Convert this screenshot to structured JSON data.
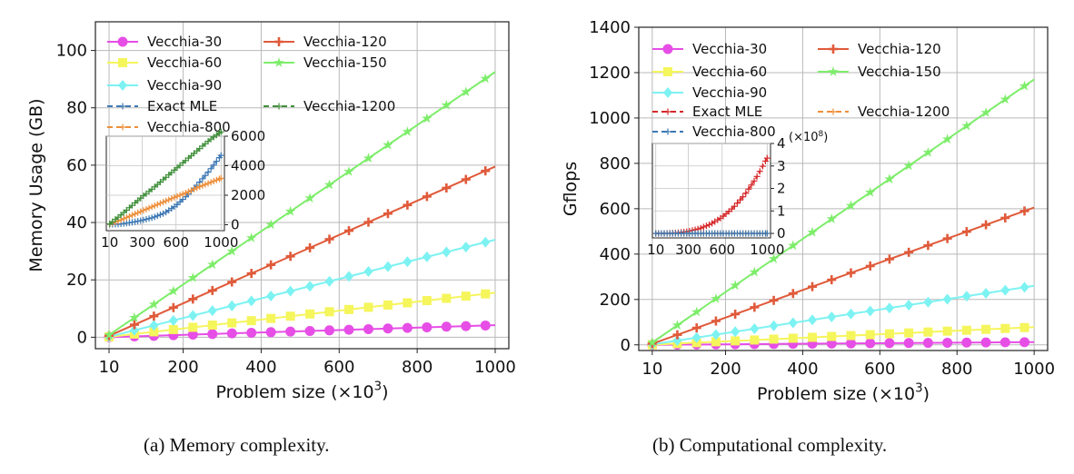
{
  "captions": {
    "a": "(a) Memory complexity.",
    "b": "(b) Computational complexity."
  },
  "chart_data": [
    {
      "type": "line",
      "title": "",
      "xlabel": "Problem size (×10^3)",
      "ylabel": "Memory Usage (GB)",
      "xlim": [
        -25,
        1035
      ],
      "ylim": [
        -4,
        110
      ],
      "xticks": [
        10,
        200,
        400,
        600,
        800,
        1000
      ],
      "yticks": [
        0,
        20,
        40,
        60,
        80,
        100
      ],
      "grid": true,
      "legend_columns": [
        [
          "Vecchia-30",
          "Vecchia-60",
          "Vecchia-90",
          "Exact MLE",
          "Vecchia-800"
        ],
        [
          "Vecchia-120",
          "Vecchia-150",
          "",
          "Vecchia-1200",
          ""
        ]
      ],
      "series": [
        {
          "name": "Vecchia-30",
          "color": "#e64ee6",
          "marker": "circle",
          "x": [
            10,
            1000
          ],
          "y": [
            0,
            4.2
          ]
        },
        {
          "name": "Vecchia-60",
          "color": "#f5f55c",
          "marker": "square",
          "x": [
            10,
            1000
          ],
          "y": [
            0.1,
            15.5
          ]
        },
        {
          "name": "Vecchia-90",
          "color": "#7df2f2",
          "marker": "diamond",
          "x": [
            10,
            1000
          ],
          "y": [
            0.2,
            34
          ]
        },
        {
          "name": "Vecchia-120",
          "color": "#e05a3a",
          "marker": "plus",
          "x": [
            10,
            1000
          ],
          "y": [
            0.5,
            59.5
          ]
        },
        {
          "name": "Vecchia-150",
          "color": "#7ded6a",
          "marker": "star",
          "x": [
            10,
            1000
          ],
          "y": [
            0.8,
            92.5
          ]
        },
        {
          "name": "Exact MLE",
          "color": "#3c78b4",
          "marker": "plus",
          "dashed": true,
          "inset_only": true
        },
        {
          "name": "Vecchia-800",
          "color": "#ee8f3a",
          "marker": "plus",
          "dashed": true,
          "inset_only": true
        },
        {
          "name": "Vecchia-1200",
          "color": "#3f8f3a",
          "marker": "plus",
          "dashed": true,
          "inset_only": true
        }
      ],
      "inset": {
        "xlim": [
          -20,
          1030
        ],
        "ylim": [
          -400,
          6000
        ],
        "xticks": [
          10,
          300,
          600,
          1000
        ],
        "yticks": [
          0,
          2000,
          4000,
          6000
        ],
        "yaxis_side": "right",
        "series": [
          {
            "name": "Exact MLE",
            "color": "#3c78b4",
            "x": [
              10,
              100,
              200,
              300,
              400,
              500,
              600,
              700,
              800,
              900,
              1000
            ],
            "y": [
              20,
              50,
              150,
              300,
              500,
              800,
              1300,
              2000,
              2800,
              3700,
              4700
            ]
          },
          {
            "name": "Vecchia-800",
            "color": "#ee8f3a",
            "x": [
              10,
              100,
              200,
              300,
              400,
              500,
              600,
              700,
              800,
              900,
              1000
            ],
            "y": [
              40,
              300,
              620,
              940,
              1260,
              1580,
              1900,
              2200,
              2550,
              2850,
              3150
            ]
          },
          {
            "name": "Vecchia-1200",
            "color": "#3f8f3a",
            "x": [
              10,
              100,
              200,
              300,
              400,
              500,
              600,
              700,
              800,
              900,
              1000
            ],
            "y": [
              60,
              600,
              1250,
              1900,
              2500,
              3150,
              3800,
              4450,
              5100,
              5750,
              6300
            ]
          }
        ]
      }
    },
    {
      "type": "line",
      "title": "",
      "xlabel": "Problem size (×10^3)",
      "ylabel": "Gflops",
      "xlim": [
        -25,
        1035
      ],
      "ylim": [
        -25,
        1400
      ],
      "xticks": [
        10,
        200,
        400,
        600,
        800,
        1000
      ],
      "yticks": [
        0,
        200,
        400,
        600,
        800,
        1000,
        1200,
        1400
      ],
      "grid": true,
      "legend_columns": [
        [
          "Vecchia-30",
          "Vecchia-60",
          "Vecchia-90",
          "Exact MLE",
          "Vecchia-800"
        ],
        [
          "Vecchia-120",
          "Vecchia-150",
          "",
          "Vecchia-1200",
          ""
        ]
      ],
      "series": [
        {
          "name": "Vecchia-30",
          "color": "#e64ee6",
          "marker": "circle",
          "x": [
            10,
            1000
          ],
          "y": [
            0,
            12
          ]
        },
        {
          "name": "Vecchia-60",
          "color": "#f5f55c",
          "marker": "square",
          "x": [
            10,
            1000
          ],
          "y": [
            0.5,
            78
          ]
        },
        {
          "name": "Vecchia-90",
          "color": "#7df2f2",
          "marker": "diamond",
          "x": [
            10,
            1000
          ],
          "y": [
            2,
            260
          ]
        },
        {
          "name": "Vecchia-120",
          "color": "#e05a3a",
          "marker": "plus",
          "x": [
            10,
            1000
          ],
          "y": [
            5,
            605
          ]
        },
        {
          "name": "Vecchia-150",
          "color": "#7ded6a",
          "marker": "star",
          "x": [
            10,
            1000
          ],
          "y": [
            10,
            1170
          ]
        },
        {
          "name": "Exact MLE",
          "color": "#d62728",
          "marker": "plus",
          "dashed": true,
          "inset_only": true
        },
        {
          "name": "Vecchia-1200",
          "color": "#ee8f3a",
          "marker": "plus",
          "dashed": true,
          "inset_only": true
        },
        {
          "name": "Vecchia-800",
          "color": "#3c78b4",
          "marker": "plus",
          "dashed": true,
          "inset_only": true
        }
      ],
      "inset": {
        "xlim": [
          -20,
          1030
        ],
        "ylim": [
          -0.2,
          4
        ],
        "xticks": [
          10,
          300,
          600,
          1000
        ],
        "yticks": [
          0,
          1,
          2,
          3,
          4
        ],
        "yaxis_side": "right",
        "yunit": "(×10^8)",
        "series": [
          {
            "name": "Exact MLE",
            "color": "#d62728",
            "x": [
              10,
              100,
              200,
              300,
              400,
              500,
              600,
              700,
              800,
              900,
              1000
            ],
            "y": [
              0,
              0.001,
              0.008,
              0.027,
              0.064,
              0.125,
              0.216,
              0.343,
              0.512,
              0.729,
              1.0
            ],
            "scale_to": 3.35
          },
          {
            "name": "Vecchia-1200",
            "color": "#ee8f3a",
            "x": [
              10,
              100,
              200,
              300,
              400,
              500,
              600,
              700,
              800,
              900,
              1000
            ],
            "y": [
              0,
              0,
              0,
              0,
              0,
              0,
              0,
              0,
              0,
              0,
              0
            ]
          },
          {
            "name": "Vecchia-800",
            "color": "#3c78b4",
            "x": [
              10,
              100,
              200,
              300,
              400,
              500,
              600,
              700,
              800,
              900,
              1000
            ],
            "y": [
              0,
              0,
              0,
              0,
              0,
              0,
              0,
              0,
              0,
              0,
              0
            ]
          }
        ]
      }
    }
  ]
}
